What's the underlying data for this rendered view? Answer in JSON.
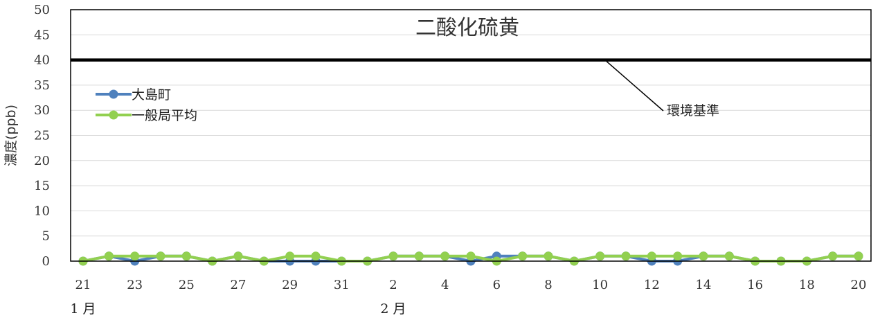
{
  "chart_data": {
    "type": "line",
    "title": "二酸化硫黄",
    "ylabel": "濃度(ppb)",
    "xlabel": "",
    "ylim": [
      0,
      50
    ],
    "yticks": [
      0,
      5,
      10,
      15,
      20,
      25,
      30,
      35,
      40,
      45,
      50
    ],
    "x": [
      "21",
      "22",
      "23",
      "24",
      "25",
      "26",
      "27",
      "28",
      "29",
      "30",
      "31",
      "1",
      "2",
      "3",
      "4",
      "5",
      "6",
      "7",
      "8",
      "9",
      "10",
      "11",
      "12",
      "13",
      "14",
      "15",
      "16",
      "17",
      "18",
      "19",
      "20"
    ],
    "xtick_labels": [
      "21",
      "",
      "23",
      "",
      "25",
      "",
      "27",
      "",
      "29",
      "",
      "31",
      "",
      "2",
      "",
      "4",
      "",
      "6",
      "",
      "8",
      "",
      "10",
      "",
      "12",
      "",
      "14",
      "",
      "16",
      "",
      "18",
      "",
      "20"
    ],
    "month_labels": [
      {
        "label": "1 月",
        "index": 0
      },
      {
        "label": "2 月",
        "index": 12
      }
    ],
    "grid": true,
    "legend_position": "top-left",
    "series": [
      {
        "name": "大島町",
        "color": "#4f81bd",
        "values": [
          0,
          1,
          0,
          1,
          1,
          0,
          1,
          0,
          0,
          0,
          0,
          0,
          1,
          1,
          1,
          0,
          1,
          1,
          1,
          0,
          1,
          1,
          0,
          0,
          1,
          1,
          0,
          0,
          0,
          1,
          1
        ]
      },
      {
        "name": "一般局平均",
        "color": "#92d050",
        "values": [
          0,
          1,
          1,
          1,
          1,
          0,
          1,
          0,
          1,
          1,
          0,
          0,
          1,
          1,
          1,
          1,
          0,
          1,
          1,
          0,
          1,
          1,
          1,
          1,
          1,
          1,
          0,
          0,
          0,
          1,
          1
        ]
      }
    ],
    "reference_line": {
      "value": 40,
      "label": "環境基準",
      "color": "#000000"
    }
  }
}
